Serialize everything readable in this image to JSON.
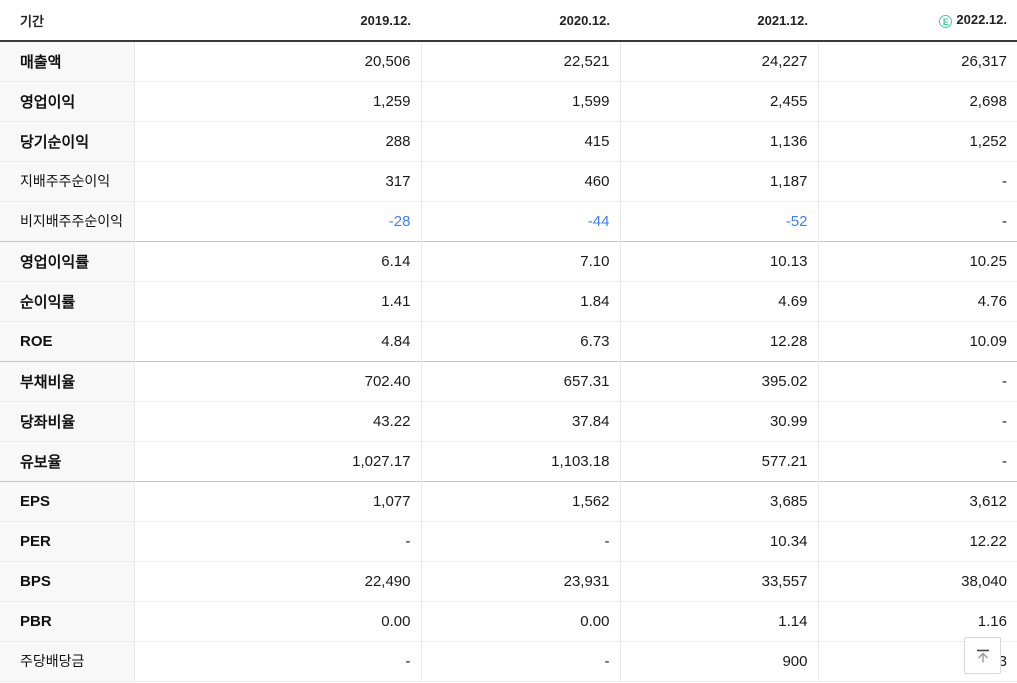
{
  "table": {
    "header": {
      "period_label": "기간",
      "columns": [
        "2019.12.",
        "2020.12.",
        "2021.12.",
        "2022.12."
      ],
      "estimate_column_index": 3,
      "estimate_badge_text": "E"
    },
    "rows": [
      {
        "label": "매출액",
        "style": "main",
        "values": [
          "20,506",
          "22,521",
          "24,227",
          "26,317"
        ]
      },
      {
        "label": "영업이익",
        "style": "main",
        "values": [
          "1,259",
          "1,599",
          "2,455",
          "2,698"
        ]
      },
      {
        "label": "당기순이익",
        "style": "main",
        "values": [
          "288",
          "415",
          "1,136",
          "1,252"
        ]
      },
      {
        "label": "지배주주순이익",
        "style": "sub",
        "values": [
          "317",
          "460",
          "1,187",
          "-"
        ]
      },
      {
        "label": "비지배주주순이익",
        "style": "sub",
        "values": [
          "-28",
          "-44",
          "-52",
          "-"
        ],
        "group_end": true
      },
      {
        "label": "영업이익률",
        "style": "main",
        "values": [
          "6.14",
          "7.10",
          "10.13",
          "10.25"
        ]
      },
      {
        "label": "순이익률",
        "style": "main",
        "values": [
          "1.41",
          "1.84",
          "4.69",
          "4.76"
        ]
      },
      {
        "label": "ROE",
        "style": "main",
        "values": [
          "4.84",
          "6.73",
          "12.28",
          "10.09"
        ],
        "group_end": true
      },
      {
        "label": "부채비율",
        "style": "main",
        "values": [
          "702.40",
          "657.31",
          "395.02",
          "-"
        ]
      },
      {
        "label": "당좌비율",
        "style": "main",
        "values": [
          "43.22",
          "37.84",
          "30.99",
          "-"
        ]
      },
      {
        "label": "유보율",
        "style": "main",
        "values": [
          "1,027.17",
          "1,103.18",
          "577.21",
          "-"
        ],
        "group_end": true
      },
      {
        "label": "EPS",
        "style": "main",
        "values": [
          "1,077",
          "1,562",
          "3,685",
          "3,612"
        ]
      },
      {
        "label": "PER",
        "style": "main",
        "values": [
          "-",
          "-",
          "10.34",
          "12.22"
        ]
      },
      {
        "label": "BPS",
        "style": "main",
        "values": [
          "22,490",
          "23,931",
          "33,557",
          "38,040"
        ]
      },
      {
        "label": "PBR",
        "style": "main",
        "values": [
          "0.00",
          "0.00",
          "1.14",
          "1.16"
        ]
      },
      {
        "label": "주당배당금",
        "style": "sub",
        "values": [
          "-",
          "-",
          "900",
          "3"
        ]
      }
    ]
  },
  "colors": {
    "negative_value": "#4080f5",
    "estimate_badge": "#4cc7a0",
    "header_rule": "#3a3a3a",
    "row_border": "#ededed",
    "group_border": "#c6c6c6",
    "label_bg": "#f8f8f8"
  },
  "scroll_top_button": {
    "icon": "arrow-up-to-top"
  }
}
